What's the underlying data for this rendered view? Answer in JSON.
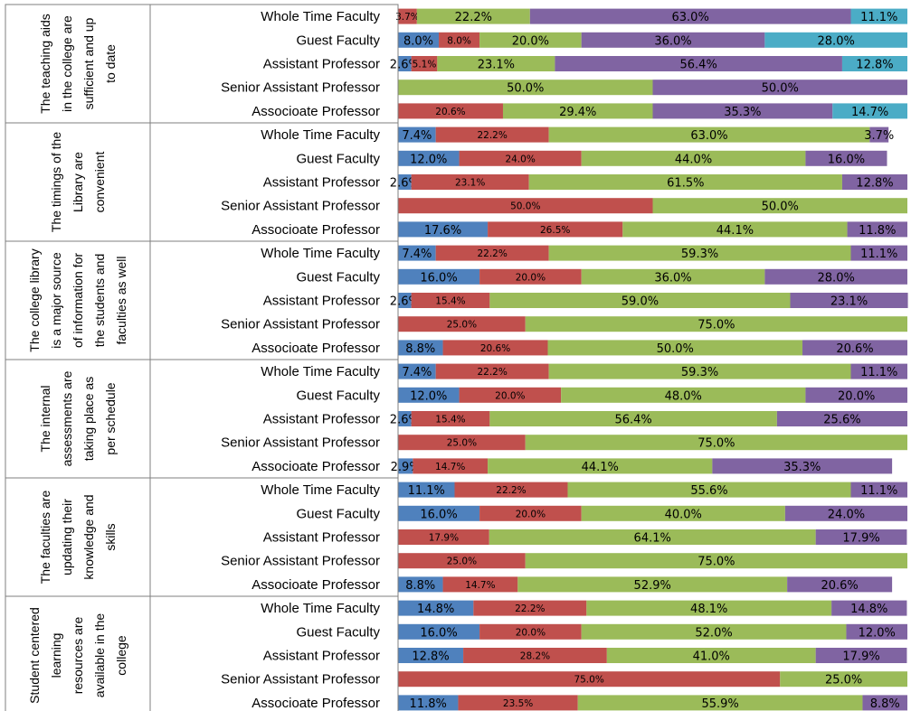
{
  "chart_data": {
    "type": "bar",
    "orientation": "horizontal",
    "stacked": true,
    "percent_stacked": true,
    "xlim": [
      0,
      100
    ],
    "grid": false,
    "legend": "none",
    "colors": [
      "#4F81BD",
      "#C0504D",
      "#9BBB59",
      "#8064A2",
      "#4BACC6"
    ],
    "groups": [
      {
        "title": [
          "The teaching aids",
          "in the college are",
          "sufficient and up",
          "to date"
        ],
        "rows": [
          {
            "category": "Whole Time Faculty",
            "values": [
              null,
              3.7,
              22.2,
              63.0,
              11.1
            ],
            "labels": [
              null,
              "3.7%",
              "22.2%",
              "63.0%",
              "11.1%"
            ]
          },
          {
            "category": "Guest Faculty",
            "values": [
              8.0,
              8.0,
              20.0,
              36.0,
              28.0
            ],
            "labels": [
              "8.0%",
              "8.0%",
              "20.0%",
              "36.0%",
              "28.0%"
            ]
          },
          {
            "category": "Assistant Professor",
            "values": [
              2.6,
              5.1,
              23.1,
              56.4,
              12.8
            ],
            "labels": [
              "2.6%",
              "5.1%",
              "23.1%",
              "56.4%",
              "12.8%"
            ]
          },
          {
            "category": "Senior Assistant Professor",
            "values": [
              null,
              null,
              50.0,
              50.0,
              null
            ],
            "labels": [
              null,
              null,
              "50.0%",
              "50.0%",
              null
            ]
          },
          {
            "category": "Associoate Professor",
            "values": [
              null,
              20.6,
              29.4,
              35.3,
              14.7
            ],
            "labels": [
              null,
              "20.6%",
              "29.4%",
              "35.3%",
              "14.7%"
            ]
          }
        ]
      },
      {
        "title": [
          "The timings of the",
          "Library are",
          "convenient"
        ],
        "rows": [
          {
            "category": "Whole Time Faculty",
            "values": [
              7.4,
              22.2,
              63.0,
              3.7,
              null
            ],
            "labels": [
              "7.4%",
              "22.2%",
              "63.0%",
              "3.7%",
              null
            ]
          },
          {
            "category": "Guest Faculty",
            "values": [
              12.0,
              24.0,
              44.0,
              16.0,
              null
            ],
            "labels": [
              "12.0%",
              "24.0%",
              "44.0%",
              "16.0%",
              null
            ]
          },
          {
            "category": "Assistant Professor",
            "values": [
              2.6,
              23.1,
              61.5,
              12.8,
              null
            ],
            "labels": [
              "2.6%",
              "23.1%",
              "61.5%",
              "12.8%",
              null
            ]
          },
          {
            "category": "Senior Assistant Professor",
            "values": [
              null,
              50.0,
              50.0,
              null,
              null
            ],
            "labels": [
              null,
              "50.0%",
              "50.0%",
              null,
              null
            ]
          },
          {
            "category": "Associoate Professor",
            "values": [
              17.6,
              26.5,
              44.1,
              11.8,
              null
            ],
            "labels": [
              "17.6%",
              "26.5%",
              "44.1%",
              "11.8%",
              null
            ]
          }
        ]
      },
      {
        "title": [
          "The college library",
          "is a major source",
          "of information for",
          "the students and",
          "faculties as well"
        ],
        "rows": [
          {
            "category": "Whole Time Faculty",
            "values": [
              7.4,
              22.2,
              59.3,
              11.1,
              null
            ],
            "labels": [
              "7.4%",
              "22.2%",
              "59.3%",
              "11.1%",
              null
            ]
          },
          {
            "category": "Guest Faculty",
            "values": [
              16.0,
              20.0,
              36.0,
              28.0,
              null
            ],
            "labels": [
              "16.0%",
              "20.0%",
              "36.0%",
              "28.0%",
              null
            ]
          },
          {
            "category": "Assistant Professor",
            "values": [
              2.6,
              15.4,
              59.0,
              23.1,
              null
            ],
            "labels": [
              "2.6%",
              "15.4%",
              "59.0%",
              "23.1%",
              null
            ]
          },
          {
            "category": "Senior Assistant Professor",
            "values": [
              null,
              25.0,
              75.0,
              null,
              null
            ],
            "labels": [
              null,
              "25.0%",
              "75.0%",
              null,
              null
            ]
          },
          {
            "category": "Associoate Professor",
            "values": [
              8.8,
              20.6,
              50.0,
              20.6,
              null
            ],
            "labels": [
              "8.8%",
              "20.6%",
              "50.0%",
              "20.6%",
              null
            ]
          }
        ]
      },
      {
        "title": [
          "The internal",
          "assessments are",
          "taking place as",
          "per schedule"
        ],
        "rows": [
          {
            "category": "Whole Time Faculty",
            "values": [
              7.4,
              22.2,
              59.3,
              11.1,
              null
            ],
            "labels": [
              "7.4%",
              "22.2%",
              "59.3%",
              "11.1%",
              null
            ]
          },
          {
            "category": "Guest Faculty",
            "values": [
              12.0,
              20.0,
              48.0,
              20.0,
              null
            ],
            "labels": [
              "12.0%",
              "20.0%",
              "48.0%",
              "20.0%",
              null
            ]
          },
          {
            "category": "Assistant Professor",
            "values": [
              2.6,
              15.4,
              56.4,
              25.6,
              null
            ],
            "labels": [
              "2.6%",
              "15.4%",
              "56.4%",
              "25.6%",
              null
            ]
          },
          {
            "category": "Senior Assistant Professor",
            "values": [
              null,
              25.0,
              75.0,
              null,
              null
            ],
            "labels": [
              null,
              "25.0%",
              "75.0%",
              null,
              null
            ]
          },
          {
            "category": "Associoate Professor",
            "values": [
              2.9,
              14.7,
              44.1,
              35.3,
              null
            ],
            "labels": [
              "2.9%",
              "14.7%",
              "44.1%",
              "35.3%",
              null
            ]
          }
        ]
      },
      {
        "title": [
          "The faculties are",
          "updating their",
          "knowledge and",
          "skills"
        ],
        "rows": [
          {
            "category": "Whole Time Faculty",
            "values": [
              11.1,
              22.2,
              55.6,
              11.1,
              null
            ],
            "labels": [
              "11.1%",
              "22.2%",
              "55.6%",
              "11.1%",
              null
            ]
          },
          {
            "category": "Guest Faculty",
            "values": [
              16.0,
              20.0,
              40.0,
              24.0,
              null
            ],
            "labels": [
              "16.0%",
              "20.0%",
              "40.0%",
              "24.0%",
              null
            ]
          },
          {
            "category": "Assistant Professor",
            "values": [
              null,
              17.9,
              64.1,
              17.9,
              null
            ],
            "labels": [
              null,
              "17.9%",
              "64.1%",
              "17.9%",
              null
            ]
          },
          {
            "category": "Senior Assistant Professor",
            "values": [
              null,
              25.0,
              75.0,
              null,
              null
            ],
            "labels": [
              null,
              "25.0%",
              "75.0%",
              null,
              null
            ]
          },
          {
            "category": "Associoate Professor",
            "values": [
              8.8,
              14.7,
              52.9,
              20.6,
              null
            ],
            "labels": [
              "8.8%",
              "14.7%",
              "52.9%",
              "20.6%",
              null
            ]
          }
        ]
      },
      {
        "title": [
          "Student centered",
          "learning",
          "resources are",
          "available in the",
          "college"
        ],
        "rows": [
          {
            "category": "Whole Time Faculty",
            "values": [
              14.8,
              22.2,
              48.1,
              14.8,
              null
            ],
            "labels": [
              "14.8%",
              "22.2%",
              "48.1%",
              "14.8%",
              null
            ]
          },
          {
            "category": "Guest Faculty",
            "values": [
              16.0,
              20.0,
              52.0,
              12.0,
              null
            ],
            "labels": [
              "16.0%",
              "20.0%",
              "52.0%",
              "12.0%",
              null
            ]
          },
          {
            "category": "Assistant Professor",
            "values": [
              12.8,
              28.2,
              41.0,
              17.9,
              null
            ],
            "labels": [
              "12.8%",
              "28.2%",
              "41.0%",
              "17.9%",
              null
            ]
          },
          {
            "category": "Senior Assistant Professor",
            "values": [
              null,
              75.0,
              25.0,
              null,
              null
            ],
            "labels": [
              null,
              "75.0%",
              "25.0%",
              null,
              null
            ]
          },
          {
            "category": "Associoate Professor",
            "values": [
              11.8,
              23.5,
              55.9,
              8.8,
              null
            ],
            "labels": [
              "11.8%",
              "23.5%",
              "55.9%",
              "8.8%",
              null
            ]
          }
        ]
      }
    ]
  }
}
